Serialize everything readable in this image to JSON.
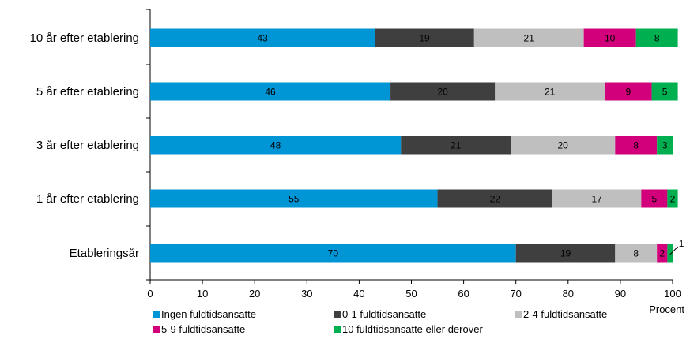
{
  "chart_data": {
    "type": "bar",
    "orientation": "horizontal",
    "stacked": true,
    "categories": [
      "10 år efter etablering",
      "5 år efter etablering",
      "3 år efter etablering",
      "1 år efter etablering",
      "Etableringsår"
    ],
    "series": [
      {
        "name": "Ingen fuldtidsansatte",
        "color": "#0096D6",
        "values": [
          43,
          46,
          48,
          55,
          70
        ]
      },
      {
        "name": "0-1 fuldtidsansatte",
        "color": "#3F3F3F",
        "values": [
          19,
          20,
          21,
          22,
          19
        ]
      },
      {
        "name": "2-4 fuldtidsansatte",
        "color": "#BFBFBF",
        "values": [
          21,
          21,
          20,
          17,
          8
        ]
      },
      {
        "name": "5-9 fuldtidsansatte",
        "color": "#D2007A",
        "values": [
          10,
          9,
          8,
          5,
          2
        ]
      },
      {
        "name": "10 fuldtidsansatte eller derover",
        "color": "#00B050",
        "values": [
          8,
          5,
          3,
          2,
          1
        ]
      }
    ],
    "xlabel": "Procent",
    "xlim": [
      0,
      100
    ],
    "xticks": [
      0,
      10,
      20,
      30,
      40,
      50,
      60,
      70,
      80,
      90,
      100
    ],
    "grid": false,
    "legend_position": "bottom"
  }
}
